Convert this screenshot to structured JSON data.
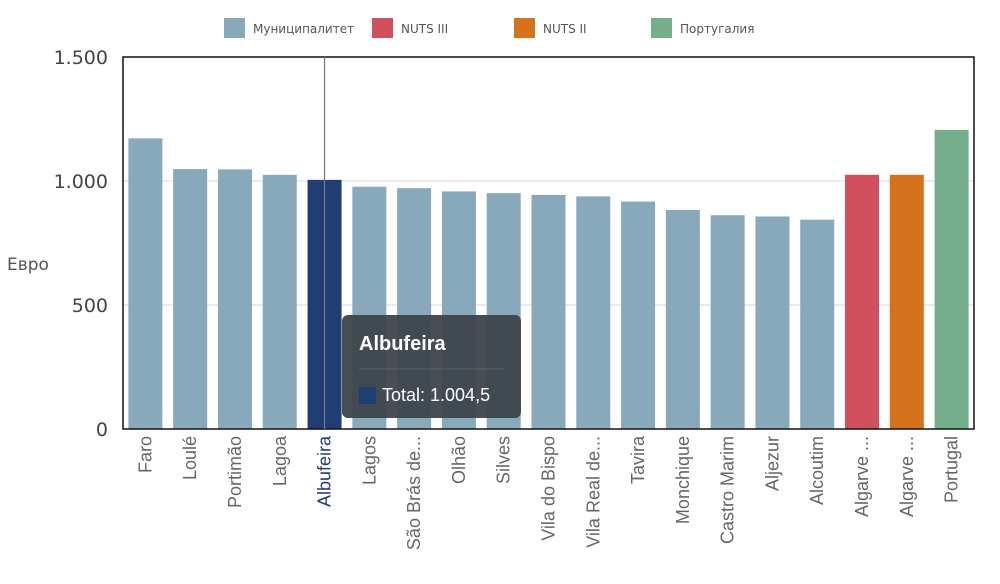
{
  "chart_data": {
    "type": "bar",
    "ylabel": "Евро",
    "ylim": [
      0,
      1500
    ],
    "yticks": [
      0,
      500,
      1000,
      1500
    ],
    "ytick_labels": [
      "0",
      "500",
      "1.000",
      "1.500"
    ],
    "grid": true,
    "legend": [
      {
        "name": "Муниципалитет",
        "color": "#87a9bb"
      },
      {
        "name": "NUTS III",
        "color": "#d0505e"
      },
      {
        "name": "NUTS II",
        "color": "#d4731b"
      },
      {
        "name": "Португалия",
        "color": "#74ae8b"
      }
    ],
    "legend_position": "top",
    "categories": [
      "Faro",
      "Loulé",
      "Portimão",
      "Lagoa",
      "Albufeira",
      "Lagos",
      "São Brás de...",
      "Olhão",
      "Silves",
      "Vila do Bispo",
      "Vila Real de...",
      "Tavira",
      "Monchique",
      "Castro Marim",
      "Aljezur",
      "Alcoutim",
      "Algarve ...",
      "Algarve ...",
      "Portugal"
    ],
    "values": [
      1172,
      1048,
      1047,
      1025,
      1004.5,
      977,
      971,
      958,
      951,
      944,
      938,
      917,
      883,
      862,
      857,
      844,
      1025,
      1025,
      1206
    ],
    "groups": [
      "Муниципалитет",
      "Муниципалитет",
      "Муниципалитет",
      "Муниципалитет",
      "Муниципалитет",
      "Муниципалитет",
      "Муниципалитет",
      "Муниципалитет",
      "Муниципалитет",
      "Муниципалитет",
      "Муниципалитет",
      "Муниципалитет",
      "Муниципалитет",
      "Муниципалитет",
      "Муниципалитет",
      "Муниципалитет",
      "NUTS III",
      "NUTS II",
      "Португалия"
    ],
    "highlight": {
      "category": "Albufeira",
      "color": "#203d74",
      "text_color": "#203d74"
    },
    "tooltip": {
      "title": "Albufeira",
      "label": "Total: 1.004,5",
      "swatch_color": "#203d74"
    }
  }
}
